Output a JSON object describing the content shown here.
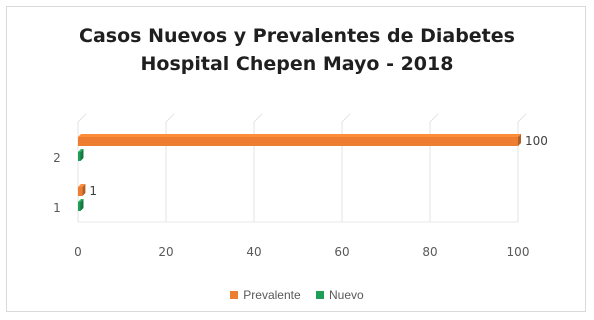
{
  "chart_data": {
    "type": "bar",
    "orientation": "horizontal",
    "style": "3d",
    "title": "Casos Nuevos y Prevalentes de Diabetes",
    "subtitle": "Hospital Chepen Mayo - 2018",
    "xlabel": "",
    "ylabel": "",
    "categories": [
      "1",
      "2"
    ],
    "xlim": [
      0,
      100
    ],
    "x_ticks": [
      "0",
      "20",
      "40",
      "60",
      "80",
      "100"
    ],
    "grid": true,
    "legend_position": "bottom",
    "series": [
      {
        "name": "Prevalente",
        "values": [
          1,
          100
        ],
        "color": "#ed7d31",
        "data_labels": [
          "1",
          "100"
        ]
      },
      {
        "name": "Nuevo",
        "values": [
          0,
          0
        ],
        "color": "#1e9e57",
        "data_labels": [
          "",
          ""
        ]
      }
    ]
  }
}
